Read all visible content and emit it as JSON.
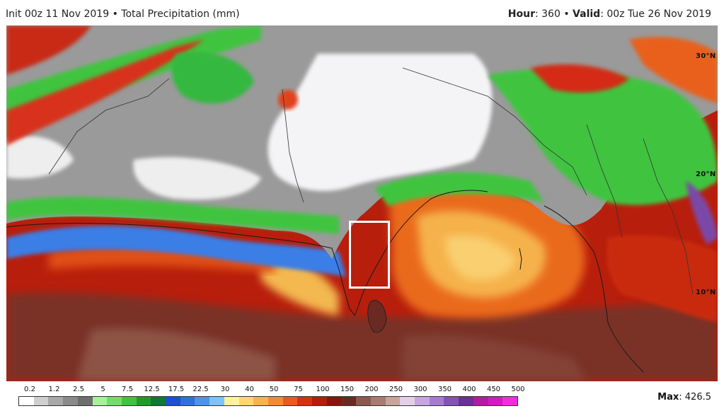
{
  "header": {
    "init_text": "Init 00z 11 Nov 2019",
    "separator": "•",
    "product": "Total Precipitation (mm)",
    "hour_label": "Hour",
    "hour_value": ": 360",
    "valid_label": "Valid",
    "valid_value": ": 00z Tue 26 Nov 2019"
  },
  "map": {
    "latitude_labels": [
      "30°N",
      "20°N",
      "10°N"
    ],
    "colors": {
      "ocean_dark": "#7a1e10",
      "ocean_red": "#c0250d",
      "ocean_orange": "#e8621a",
      "ocean_yellow": "#f6c25e",
      "land_white": "#f4f4f6",
      "land_grey": "#9a9a9a",
      "green": "#3fc43f",
      "blue": "#2f6fe0",
      "brown": "#7d4a3a",
      "highlight_box": "#ffffff"
    }
  },
  "legend": {
    "ticks": [
      "0.2",
      "1.2",
      "2.5",
      "5",
      "7.5",
      "12.5",
      "17.5",
      "22.5",
      "30",
      "40",
      "50",
      "75",
      "100",
      "150",
      "200",
      "250",
      "300",
      "350",
      "400",
      "450",
      "500"
    ],
    "swatches": [
      "#ffffff",
      "#cfcfcf",
      "#a8a8a8",
      "#8a8a8a",
      "#6e6e6e",
      "#a6f29a",
      "#72de6a",
      "#3fc43f",
      "#1f9b2a",
      "#0e7a35",
      "#1d4fd0",
      "#2f6fe0",
      "#4a95ee",
      "#7ec2f7",
      "#fff29a",
      "#ffd86a",
      "#fcb24a",
      "#f68a30",
      "#ea5a1c",
      "#d2320f",
      "#b41c0c",
      "#8c120c",
      "#6a2a22",
      "#8a5a4e",
      "#a87c70",
      "#c8a49a",
      "#e4cfe8",
      "#c7a6e0",
      "#a77ccf",
      "#8652ba",
      "#6a2e9e",
      "#b21ba8",
      "#d419c7",
      "#f12ce0"
    ],
    "max_label": "Max",
    "max_value": ": 426.5"
  }
}
